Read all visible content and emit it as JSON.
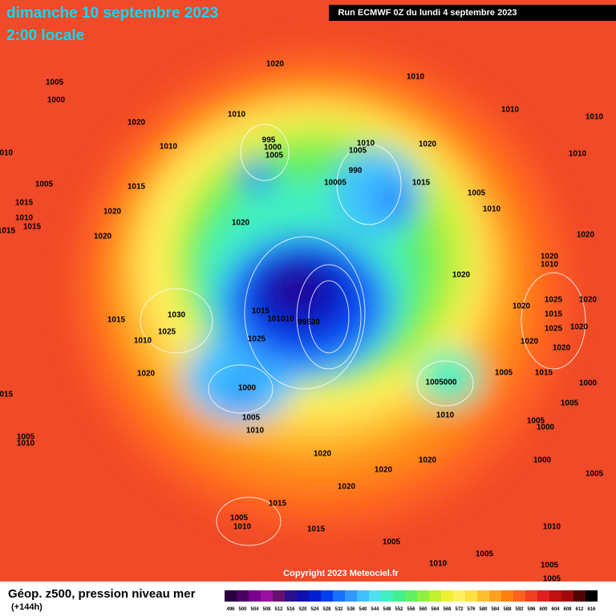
{
  "header": {
    "date": "dimanche 10 septembre 2023",
    "time": "2:00 locale",
    "run": "Run ECMWF 0Z du lundi 4 septembre 2023"
  },
  "copyright": "Copyright 2023 Meteociel.fr",
  "legend": {
    "title": "Géop. z500, pression niveau mer",
    "subtitle": "(+144h)",
    "scale": [
      496,
      500,
      504,
      508,
      512,
      516,
      520,
      524,
      528,
      532,
      536,
      540,
      544,
      548,
      552,
      556,
      560,
      564,
      568,
      572,
      576,
      580,
      584,
      588,
      592,
      596,
      600,
      604,
      608,
      612,
      616
    ],
    "colors": [
      "#2a0040",
      "#4b0060",
      "#7a0090",
      "#9a10a0",
      "#6a1070",
      "#2a1090",
      "#1010b0",
      "#0020d0",
      "#0040f0",
      "#1870ff",
      "#3098ff",
      "#40c0ff",
      "#50e0f0",
      "#40f0c0",
      "#40f090",
      "#60f060",
      "#90f040",
      "#c0f030",
      "#f0f030",
      "#fff060",
      "#ffe040",
      "#ffc030",
      "#ffa020",
      "#ff8010",
      "#ff6020",
      "#f04020",
      "#e02020",
      "#c01010",
      "#a00a0a",
      "#500505",
      "#000000"
    ]
  },
  "isobar_labels": [
    "1020",
    "1005",
    "1000",
    "1010",
    "1010",
    "1010",
    "1010",
    "1020",
    "1010",
    "1010",
    "995",
    "1000",
    "1005",
    "1005",
    "1010",
    "1020",
    "1010",
    "990",
    "10005",
    "1015",
    "1005",
    "1015",
    "1005",
    "1015",
    "1010",
    "1015",
    "1015",
    "1020",
    "1010",
    "1020",
    "1020",
    "1020",
    "1020",
    "1010",
    "1020",
    "1025",
    "1020",
    "1020",
    "1015",
    "1025",
    "1020",
    "1015",
    "1030",
    "1015",
    "101010",
    "99530",
    "1025",
    "1010",
    "1025",
    "1020",
    "1020",
    "1005",
    "1015",
    "1020",
    "1005000",
    "1000",
    "1000",
    "1015",
    "1005",
    "1005",
    "1010",
    "1005",
    "1000",
    "1010",
    "1005",
    "1010",
    "1020",
    "1020",
    "1020",
    "1000",
    "1005",
    "1020",
    "1015",
    "1005",
    "1010",
    "1015",
    "1010",
    "1005",
    "1005",
    "1010",
    "1005",
    "1005"
  ]
}
